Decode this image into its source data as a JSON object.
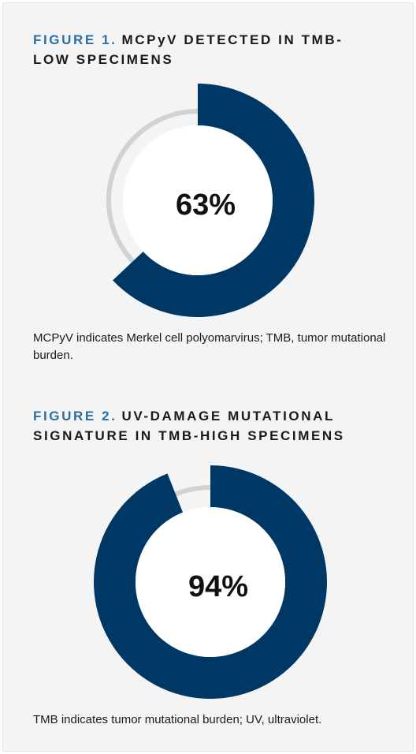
{
  "chart_data": [
    {
      "type": "donut",
      "label": "FIGURE 1.",
      "title": "MCPyV DETECTED IN TMB-LOW SPECIMENS",
      "values": [
        63
      ],
      "value_labels": [
        "63%"
      ],
      "color": "#003865",
      "track_color": "#d2d2d2",
      "note": "MCPyV indicates Merkel cell polyomarvirus; TMB, tumor mutational burden."
    },
    {
      "type": "donut",
      "label": "FIGURE 2.",
      "title": "UV-DAMAGE MUTATIONAL SIGNATURE IN TMB-HIGH SPECIMENS",
      "values": [
        94
      ],
      "value_labels": [
        "94%"
      ],
      "color": "#003865",
      "track_color": "#d2d2d2",
      "note": "TMB indicates tumor mutational burden; UV, ultraviolet."
    }
  ]
}
